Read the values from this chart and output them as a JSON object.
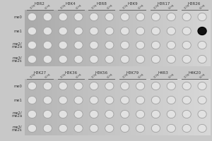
{
  "panel1_headers": [
    "H3R2",
    "H3K4",
    "H3R8",
    "H3K9",
    "H3R17",
    "H3R26"
  ],
  "panel2_headers": [
    "H3K27",
    "H3K36",
    "H3K56",
    "H3K79",
    "H4R3",
    "H4K20"
  ],
  "row_labels": [
    "me0",
    "me1",
    "me2/\nme2a",
    "me3/\nme2s"
  ],
  "sub_labels": [
    "100g",
    "50ng"
  ],
  "fig_bg": "#c8c8c8",
  "panel_bg_left": "#b0b0b0",
  "panel_bg_right": "#d0d0d0",
  "dot_fc": "#e0e0e0",
  "dot_ec": "#999999",
  "dot_filled_fc": "#111111",
  "dot_filled_ec": "#000000",
  "header_color": "#333333",
  "label_color": "#333333",
  "line_color": "#666666",
  "n_cols": 6,
  "n_rows": 4,
  "dots_per_col": 2,
  "figsize": [
    3.0,
    2.0
  ],
  "dpi": 100,
  "filled1": [
    [
      1,
      11
    ]
  ],
  "filled2": []
}
